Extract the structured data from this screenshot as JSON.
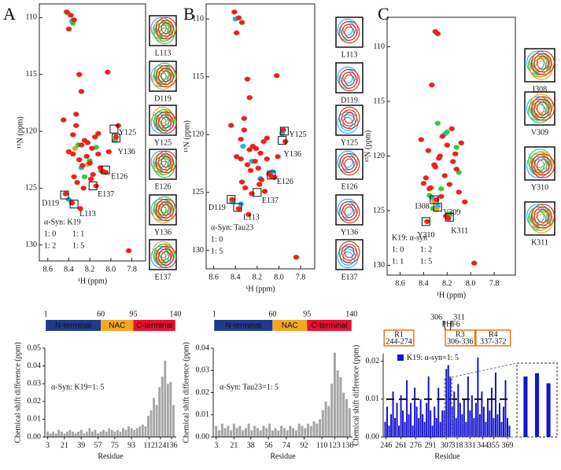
{
  "panel_labels": [
    "A",
    "B",
    "C"
  ],
  "chart_data": [
    {
      "type": "scatter",
      "xlabel": "¹H (ppm)",
      "ylabel": "¹⁵N (ppm)",
      "xlim": [
        8.68,
        7.67
      ],
      "ylim": [
        108.8,
        131.4
      ],
      "xticks": [
        8.6,
        8.4,
        8.2,
        {
          "value": 8,
          "label": "8.0"
        },
        7.8
      ],
      "yticks": [
        110,
        115,
        120,
        125,
        130
      ],
      "legend_title": "α-Syn: K19",
      "series": [
        {
          "name": "1: 0",
          "color": "#19b5e6",
          "x": [
            8.37,
            8.28,
            8.4
          ],
          "y": [
            110.3,
            123.2,
            126.0
          ]
        },
        {
          "name": "1: 1",
          "color": "#f0a020",
          "x": [
            8.34,
            8.22
          ],
          "y": [
            121.5,
            122.9
          ]
        },
        {
          "name": "1: 2",
          "color": "#2ecc40",
          "x": [
            8.41,
            8.31,
            8.2,
            8.09,
            7.96,
            8.25,
            8.36,
            8.14
          ],
          "y": [
            109.6,
            121.2,
            122.6,
            123.5,
            120.8,
            124.0,
            110.5,
            121.4
          ]
        },
        {
          "name": "1: 5",
          "color": "#e8231a",
          "x": [
            8.42,
            8.38,
            8.35,
            8.4,
            8.3,
            8.28,
            8.45,
            8.33,
            8.36,
            8.25,
            8.22,
            8.18,
            8.15,
            8.12,
            8.3,
            8.27,
            8.2,
            8.1,
            8.05,
            8.35,
            8.4,
            8.32,
            8.26,
            8.19,
            8.14,
            8.08,
            8.02,
            7.95,
            7.93,
            8.43,
            8.37,
            8.29,
            8.23,
            8.17,
            8.36,
            8.28,
            8.12,
            8.33,
            7.83,
            8.03
          ],
          "y": [
            109.5,
            109.8,
            110.2,
            111.0,
            115.0,
            116.5,
            119.0,
            119.5,
            120.3,
            120.8,
            121.0,
            121.5,
            120.5,
            122.0,
            122.5,
            123.0,
            122.8,
            123.2,
            123.6,
            124.0,
            121.8,
            124.5,
            125.0,
            124.2,
            124.8,
            123.5,
            121.8,
            120.5,
            119.5,
            125.5,
            126.3,
            126.8,
            122.2,
            123.8,
            122.0,
            121.2,
            120.2,
            118.5,
            130.5,
            114.8
          ]
        }
      ],
      "annotations": [
        {
          "label": "Y125",
          "x": 7.97,
          "y": 119.8
        },
        {
          "label": "Y136",
          "x": 7.95,
          "y": 120.6
        },
        {
          "label": "E126",
          "x": 8.05,
          "y": 123.4
        },
        {
          "label": "E137",
          "x": 8.17,
          "y": 124.8
        },
        {
          "label": "D119",
          "x": 8.44,
          "y": 125.6
        },
        {
          "label": "L113",
          "x": 8.35,
          "y": 126.4
        }
      ],
      "insets": [
        "L113",
        "D119",
        "Y125",
        "E126",
        "Y136",
        "E137"
      ]
    },
    {
      "type": "scatter",
      "xlabel": "¹H (ppm)",
      "ylabel": "¹⁵N (ppm)",
      "xlim": [
        8.67,
        7.67
      ],
      "ylim": [
        108.7,
        131.6
      ],
      "xticks": [
        8.6,
        8.4,
        8.2,
        {
          "value": 8,
          "label": "8.0"
        },
        7.8
      ],
      "yticks": [
        110,
        115,
        120,
        125,
        130
      ],
      "legend_title": "α-Syn: Tau23",
      "series": [
        {
          "name": "1: 0",
          "color": "#19b5e6",
          "x": [
            8.4,
            8.33,
            8.25,
            8.17,
            8.06,
            7.97,
            8.43,
            8.35
          ],
          "y": [
            110.0,
            121.0,
            122.3,
            123.8,
            123.2,
            119.9,
            125.8,
            126.0
          ]
        },
        {
          "name": "1: 5",
          "color": "#e8231a",
          "x": [
            8.41,
            8.37,
            8.34,
            8.39,
            8.29,
            8.27,
            8.44,
            8.32,
            8.35,
            8.24,
            8.21,
            8.17,
            8.14,
            8.11,
            8.29,
            8.26,
            8.19,
            8.09,
            8.04,
            8.34,
            8.39,
            8.31,
            8.25,
            8.18,
            8.13,
            8.07,
            8.01,
            7.94,
            7.96,
            8.43,
            8.37,
            8.28,
            8.22,
            8.16,
            8.35,
            8.27,
            8.11,
            8.32,
            7.84,
            8.02
          ],
          "y": [
            109.4,
            109.9,
            110.3,
            111.2,
            115.2,
            116.8,
            119.2,
            119.6,
            120.4,
            121.0,
            121.2,
            121.6,
            120.6,
            122.1,
            122.6,
            123.1,
            122.9,
            123.4,
            123.7,
            124.1,
            121.9,
            124.6,
            125.1,
            124.3,
            124.9,
            123.6,
            121.9,
            120.6,
            119.6,
            125.6,
            126.4,
            126.9,
            122.3,
            123.9,
            122.1,
            121.3,
            120.3,
            118.6,
            130.6,
            114.9
          ]
        }
      ],
      "annotations": [
        {
          "label": "Y125",
          "x": 7.95,
          "y": 119.7
        },
        {
          "label": "Y136",
          "x": 7.97,
          "y": 120.5
        },
        {
          "label": "E126",
          "x": 8.07,
          "y": 123.5
        },
        {
          "label": "E137",
          "x": 8.2,
          "y": 125.0
        },
        {
          "label": "D119",
          "x": 8.44,
          "y": 125.6
        },
        {
          "label": "L113",
          "x": 8.38,
          "y": 126.3
        }
      ],
      "insets": [
        "L113",
        "D119",
        "Y125",
        "E126",
        "Y136",
        "E137"
      ]
    },
    {
      "type": "scatter",
      "xlabel": "¹H (ppm)",
      "ylabel": "¹⁵N (ppm)",
      "xlim": [
        8.71,
        7.62
      ],
      "ylim": [
        107.3,
        130.9
      ],
      "xticks": [
        8.6,
        8.4,
        8.2,
        {
          "value": 8,
          "label": "8.0"
        },
        7.8
      ],
      "yticks": [
        110,
        115,
        120,
        125,
        130
      ],
      "legend_title": "K19: α-syn",
      "series": [
        {
          "name": "1: 0",
          "color": "#19b5e6",
          "x": [
            8.22,
            8.33,
            8.28,
            8.18
          ],
          "y": [
            118.0,
            123.8,
            124.6,
            125.4
          ]
        },
        {
          "name": "1: 2",
          "color": "#2ecc40",
          "x": [
            8.28,
            8.2,
            8.32,
            8.12,
            8.25,
            8.1,
            8.35,
            8.18
          ],
          "y": [
            117.0,
            117.8,
            124.8,
            119.2,
            123.0,
            121.5,
            123.6,
            125.3
          ]
        },
        {
          "name": "1: 1",
          "color": "#f0a020",
          "x": [
            8.31,
            8.29
          ],
          "y": [
            124.1,
            124.9
          ]
        },
        {
          "name": "1: 5",
          "color": "#e8231a",
          "x": [
            8.3,
            8.28,
            8.33,
            8.42,
            8.36,
            8.2,
            8.26,
            8.31,
            8.15,
            8.12,
            8.22,
            8.38,
            8.4,
            8.35,
            8.18,
            8.1,
            8.25,
            8.29,
            8.05,
            8.3,
            8.24,
            8.16,
            8.37,
            8.13,
            8.21,
            8.34,
            8.27,
            7.97,
            8.08,
            8.19
          ],
          "y": [
            108.6,
            108.8,
            113.5,
            118.5,
            119.5,
            119.0,
            120.0,
            120.8,
            120.5,
            121.2,
            121.8,
            122.0,
            122.5,
            123.0,
            122.6,
            123.3,
            123.7,
            124.0,
            124.2,
            121.0,
            118.2,
            117.5,
            126.0,
            119.8,
            125.5,
            122.9,
            120.2,
            129.8,
            118.8,
            125.7
          ]
        }
      ],
      "annotations": [
        {
          "label": "I308",
          "x": 8.31,
          "y": 124.0
        },
        {
          "label": "V309",
          "x": 8.28,
          "y": 124.7
        },
        {
          "label": "Y310",
          "x": 8.38,
          "y": 126.0
        },
        {
          "label": "K311",
          "x": 8.18,
          "y": 125.6
        }
      ],
      "insets": [
        "I308",
        "V309",
        "Y310",
        "K311"
      ]
    },
    {
      "type": "bar",
      "xlabel": "Residue",
      "ylabel": "Chemical shift difference (ppm)",
      "annotation": "α-Syn: K19=1: 5",
      "color": "#a6a6a6",
      "x": [
        3,
        6,
        9,
        12,
        15,
        18,
        21,
        24,
        27,
        30,
        33,
        36,
        39,
        42,
        45,
        48,
        51,
        54,
        57,
        60,
        63,
        66,
        69,
        72,
        75,
        78,
        81,
        84,
        87,
        90,
        93,
        96,
        99,
        102,
        105,
        108,
        111,
        114,
        117,
        120,
        123,
        126,
        129,
        132,
        135,
        138
      ],
      "values": [
        0.003,
        0.002,
        0.003,
        0.002,
        0.004,
        0.003,
        0.002,
        0.003,
        0.004,
        0.003,
        0.002,
        0.003,
        0.004,
        0.002,
        0.003,
        0.005,
        0.003,
        0.004,
        0.002,
        0.003,
        0.004,
        0.003,
        0.005,
        0.004,
        0.003,
        0.004,
        0.003,
        0.005,
        0.004,
        0.006,
        0.005,
        0.004,
        0.005,
        0.006,
        0.007,
        0.006,
        0.012,
        0.015,
        0.022,
        0.018,
        0.028,
        0.034,
        0.043,
        0.03,
        0.031,
        0.018
      ],
      "xlim": [
        0,
        141
      ],
      "ylim": [
        0,
        0.05
      ],
      "xticks": [
        3,
        21,
        39,
        57,
        75,
        93,
        112,
        124,
        136
      ],
      "yticks": [
        {
          "value": 0,
          "label": "0.00"
        },
        0.01,
        0.02,
        0.03,
        0.04,
        0.05
      ],
      "boundaries": [
        1,
        60,
        95,
        140
      ],
      "domains": [
        {
          "name": "N-terminal",
          "color": "#1f3a8f"
        },
        {
          "name": "NAC",
          "color": "#f5a623"
        },
        {
          "name": "C-terminal",
          "color": "#e8102e"
        }
      ]
    },
    {
      "type": "bar",
      "xlabel": "Residue",
      "ylabel": "Chemical shift difference (ppm)",
      "annotation": "α-Syn: Tau23=1: 5",
      "color": "#a6a6a6",
      "x": [
        3,
        6,
        9,
        12,
        15,
        18,
        21,
        24,
        27,
        30,
        33,
        36,
        39,
        42,
        45,
        48,
        51,
        54,
        57,
        60,
        63,
        66,
        69,
        72,
        75,
        78,
        81,
        84,
        87,
        90,
        93,
        96,
        99,
        102,
        105,
        108,
        111,
        114,
        117,
        120,
        123,
        126,
        129,
        132,
        135,
        138
      ],
      "values": [
        0.005,
        0.003,
        0.006,
        0.004,
        0.005,
        0.003,
        0.006,
        0.004,
        0.005,
        0.003,
        0.004,
        0.006,
        0.003,
        0.005,
        0.004,
        0.003,
        0.005,
        0.004,
        0.006,
        0.003,
        0.004,
        0.003,
        0.005,
        0.004,
        0.003,
        0.005,
        0.004,
        0.003,
        0.006,
        0.005,
        0.004,
        0.006,
        0.005,
        0.007,
        0.006,
        0.008,
        0.012,
        0.016,
        0.014,
        0.024,
        0.038,
        0.03,
        0.027,
        0.02,
        0.017,
        0.013
      ],
      "xlim": [
        0,
        141
      ],
      "ylim": [
        0,
        0.04
      ],
      "xticks": [
        3,
        21,
        38,
        56,
        74,
        92,
        110,
        123,
        136
      ],
      "yticks": [
        {
          "value": 0,
          "label": "0.00"
        },
        0.01,
        0.02,
        0.03,
        0.04
      ],
      "boundaries": [
        1,
        60,
        95,
        140
      ],
      "domains": [
        {
          "name": "N-terminal",
          "color": "#1f3a8f"
        },
        {
          "name": "NAC",
          "color": "#f5a623"
        },
        {
          "name": "C-terminal",
          "color": "#e8102e"
        }
      ]
    },
    {
      "type": "bar",
      "xlabel": "Residue",
      "ylabel": "Chemical shift difference (ppm)",
      "x": [
        245,
        247,
        249,
        251,
        253,
        255,
        257,
        259,
        261,
        263,
        265,
        267,
        269,
        271,
        273,
        275,
        277,
        279,
        281,
        283,
        285,
        287,
        289,
        291,
        293,
        295,
        297,
        299,
        301,
        303,
        305,
        307,
        309,
        311,
        313,
        315,
        317,
        319,
        321,
        323,
        325,
        327,
        329,
        331,
        333,
        335,
        337,
        339,
        341,
        343,
        345,
        347,
        349,
        351,
        353,
        355,
        357,
        359,
        361,
        363,
        365,
        367,
        369,
        371
      ],
      "series": [
        {
          "name": "K19: α-syn=1: 5",
          "color": "#1414d2",
          "values": [
            0.004,
            0.008,
            0.003,
            0.006,
            0.012,
            0.005,
            0.009,
            0.003,
            0.011,
            0.007,
            0.004,
            0.015,
            0.006,
            0.009,
            0.003,
            0.013,
            0.008,
            0.005,
            0.01,
            0.006,
            0.004,
            0.009,
            0.016,
            0.007,
            0.003,
            0.008,
            0.005,
            0.013,
            0.004,
            0.007,
            0.007,
            0.018,
            0.019,
            0.016,
            0.008,
            0.012,
            0.005,
            0.014,
            0.009,
            0.006,
            0.01,
            0.004,
            0.016,
            0.007,
            0.011,
            0.005,
            0.009,
            0.021,
            0.006,
            0.012,
            0.008,
            0.004,
            0.01,
            0.007,
            0.013,
            0.005,
            0.017,
            0.006,
            0.009,
            0.004,
            0.008,
            0.015,
            0.005,
            0.003
          ]
        }
      ],
      "xlim": [
        243,
        373
      ],
      "ylim": [
        0,
        0.022
      ],
      "xticks": [
        246,
        261,
        276,
        291,
        307,
        318,
        331,
        344,
        355,
        369
      ],
      "yticks": [
        {
          "value": 0,
          "label": "0.00"
        },
        0.01,
        0.02
      ],
      "reference_line": 0.01,
      "zoom_xlim": [
        305.5,
        312.5
      ],
      "repeats": [
        {
          "name": "R1",
          "label": "244-274",
          "start": 244,
          "end": 274
        },
        {
          "name": "R3",
          "label": "306-336",
          "start": 306,
          "end": 336
        },
        {
          "name": "R4",
          "label": "337-372",
          "start": 337,
          "end": 372
        }
      ],
      "phf6": {
        "label": "PHF6",
        "start": 306,
        "end": 311
      }
    }
  ]
}
